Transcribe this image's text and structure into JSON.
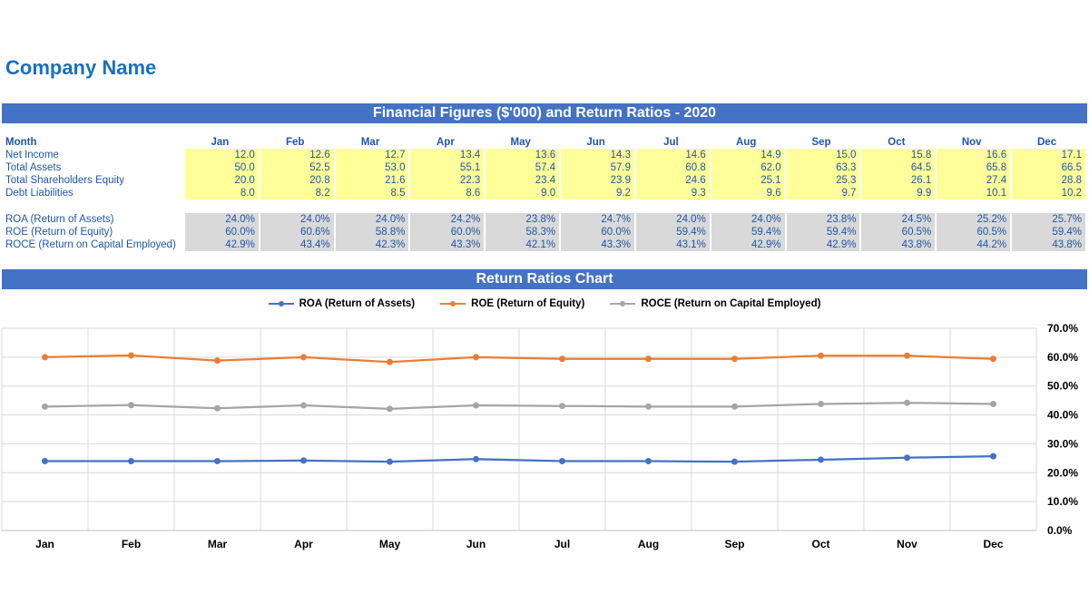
{
  "company_name": "Company Name",
  "table_title": "Financial Figures ($'000) and Return Ratios - 2020",
  "chart_title": "Return Ratios Chart",
  "month_label": "Month",
  "months": [
    "Jan",
    "Feb",
    "Mar",
    "Apr",
    "May",
    "Jun",
    "Jul",
    "Aug",
    "Sep",
    "Oct",
    "Nov",
    "Dec"
  ],
  "financials": [
    {
      "label": "Net Income",
      "values": [
        "12.0",
        "12.6",
        "12.7",
        "13.4",
        "13.6",
        "14.3",
        "14.6",
        "14.9",
        "15.0",
        "15.8",
        "16.6",
        "17.1"
      ]
    },
    {
      "label": "Total Assets",
      "values": [
        "50.0",
        "52.5",
        "53.0",
        "55.1",
        "57.4",
        "57.9",
        "60.8",
        "62.0",
        "63.3",
        "64.5",
        "65.8",
        "66.5"
      ]
    },
    {
      "label": "Total Shareholders Equity",
      "values": [
        "20.0",
        "20.8",
        "21.6",
        "22.3",
        "23.4",
        "23.9",
        "24.6",
        "25.1",
        "25.3",
        "26.1",
        "27.4",
        "28.8"
      ]
    },
    {
      "label": "Debt Liabilities",
      "values": [
        "8.0",
        "8.2",
        "8.5",
        "8.6",
        "9.0",
        "9.2",
        "9.3",
        "9.6",
        "9.7",
        "9.9",
        "10.1",
        "10.2"
      ]
    }
  ],
  "ratios": [
    {
      "label": "ROA (Return of Assets)",
      "values": [
        "24.0%",
        "24.0%",
        "24.0%",
        "24.2%",
        "23.8%",
        "24.7%",
        "24.0%",
        "24.0%",
        "23.8%",
        "24.5%",
        "25.2%",
        "25.7%"
      ]
    },
    {
      "label": "ROE (Return of Equity)",
      "values": [
        "60.0%",
        "60.6%",
        "58.8%",
        "60.0%",
        "58.3%",
        "60.0%",
        "59.4%",
        "59.4%",
        "59.4%",
        "60.5%",
        "60.5%",
        "59.4%"
      ]
    },
    {
      "label": "ROCE (Return on Capital Employed)",
      "values": [
        "42.9%",
        "43.4%",
        "42.3%",
        "43.3%",
        "42.1%",
        "43.3%",
        "43.1%",
        "42.9%",
        "42.9%",
        "43.8%",
        "44.2%",
        "43.8%"
      ]
    }
  ],
  "colors": {
    "banner": "#4472c4",
    "yellow_cell": "#ffff99",
    "grey_cell": "#d9d9d9",
    "text_blue": "#1f57a6"
  },
  "chart_data": {
    "type": "line",
    "categories": [
      "Jan",
      "Feb",
      "Mar",
      "Apr",
      "May",
      "Jun",
      "Jul",
      "Aug",
      "Sep",
      "Oct",
      "Nov",
      "Dec"
    ],
    "series": [
      {
        "name": "ROA (Return of Assets)",
        "color": "#4472c4",
        "values": [
          24.0,
          24.0,
          24.0,
          24.2,
          23.8,
          24.7,
          24.0,
          24.0,
          23.8,
          24.5,
          25.2,
          25.7
        ]
      },
      {
        "name": "ROE (Return of Equity)",
        "color": "#ed7d31",
        "values": [
          60.0,
          60.6,
          58.8,
          60.0,
          58.3,
          60.0,
          59.4,
          59.4,
          59.4,
          60.5,
          60.5,
          59.4
        ]
      },
      {
        "name": "ROCE (Return on Capital Employed)",
        "color": "#a5a5a5",
        "values": [
          42.9,
          43.4,
          42.3,
          43.3,
          42.1,
          43.3,
          43.1,
          42.9,
          42.9,
          43.8,
          44.2,
          43.8
        ]
      }
    ],
    "ylim": [
      0,
      70
    ],
    "yticks": [
      "0.0%",
      "10.0%",
      "20.0%",
      "30.0%",
      "40.0%",
      "50.0%",
      "60.0%",
      "70.0%"
    ],
    "y_axis_side": "right",
    "grid": true,
    "legend_position": "top"
  }
}
